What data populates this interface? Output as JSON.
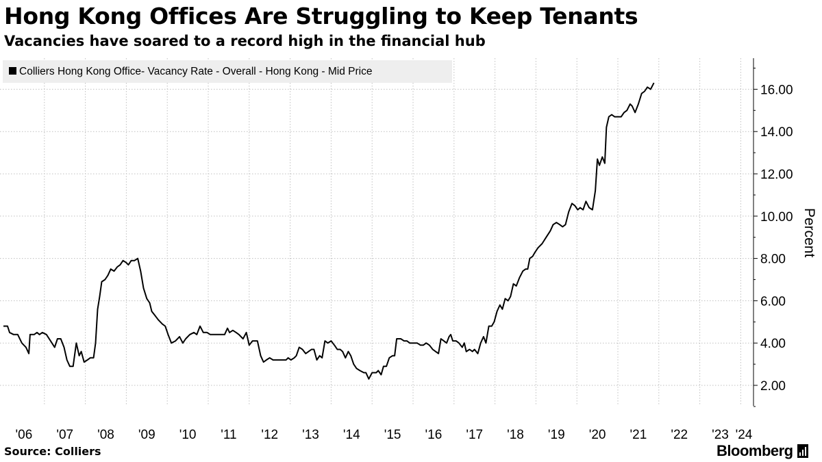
{
  "title": "Hong Kong Offices Are Struggling to Keep Tenants",
  "subtitle": "Vacancies have soared to a record high in the financial hub",
  "source": "Source: Colliers",
  "brand": "Bloomberg",
  "colors": {
    "line": "#000000",
    "grid": "#bfbfbf",
    "legend_bg": "#eeeeee",
    "axis": "#000000"
  },
  "chart_data": {
    "type": "line",
    "title": "Hong Kong Offices Are Struggling to Keep Tenants",
    "subtitle": "Vacancies have soared to a record high in the financial hub",
    "xlabel": "",
    "ylabel": "Percent",
    "ylim": [
      1.0,
      17.5
    ],
    "xlim": [
      2006.0,
      2024.3
    ],
    "y_ticks": [
      2,
      4,
      6,
      8,
      10,
      12,
      14,
      16
    ],
    "y_tick_labels": [
      "2.00",
      "4.00",
      "6.00",
      "8.00",
      "10.00",
      "12.00",
      "14.00",
      "16.00"
    ],
    "y_axis_side": "right",
    "x_ticks": [
      2006,
      2007,
      2008,
      2009,
      2010,
      2011,
      2012,
      2013,
      2014,
      2015,
      2016,
      2017,
      2018,
      2019,
      2020,
      2021,
      2022,
      2023,
      2024
    ],
    "x_tick_labels": [
      "'06",
      "'07",
      "'08",
      "'09",
      "'10",
      "'11",
      "'12",
      "'13",
      "'14",
      "'15",
      "'16",
      "'17",
      "'18",
      "'19",
      "'20",
      "'21",
      "'22",
      "'23",
      "'24"
    ],
    "grid": true,
    "legend_position": "top-left",
    "series": [
      {
        "name": "Colliers Hong Kong Office- Vacancy Rate - Overall - Hong Kong - Mid Price",
        "points": [
          [
            2006.0,
            4.8
          ],
          [
            2006.1,
            4.8
          ],
          [
            2006.15,
            4.5
          ],
          [
            2006.25,
            4.4
          ],
          [
            2006.35,
            4.4
          ],
          [
            2006.45,
            4.0
          ],
          [
            2006.55,
            3.8
          ],
          [
            2006.62,
            3.5
          ],
          [
            2006.65,
            4.4
          ],
          [
            2006.75,
            4.4
          ],
          [
            2006.82,
            4.5
          ],
          [
            2006.88,
            4.4
          ],
          [
            2006.95,
            4.5
          ],
          [
            2007.05,
            4.4
          ],
          [
            2007.15,
            4.1
          ],
          [
            2007.25,
            3.8
          ],
          [
            2007.32,
            4.2
          ],
          [
            2007.4,
            4.2
          ],
          [
            2007.48,
            3.8
          ],
          [
            2007.55,
            3.2
          ],
          [
            2007.62,
            2.9
          ],
          [
            2007.7,
            2.9
          ],
          [
            2007.78,
            4.0
          ],
          [
            2007.85,
            3.4
          ],
          [
            2007.9,
            3.6
          ],
          [
            2007.97,
            3.1
          ],
          [
            2008.05,
            3.2
          ],
          [
            2008.12,
            3.3
          ],
          [
            2008.2,
            3.3
          ],
          [
            2008.25,
            4.0
          ],
          [
            2008.3,
            5.6
          ],
          [
            2008.35,
            6.2
          ],
          [
            2008.4,
            6.9
          ],
          [
            2008.48,
            7.0
          ],
          [
            2008.55,
            7.2
          ],
          [
            2008.62,
            7.5
          ],
          [
            2008.7,
            7.4
          ],
          [
            2008.78,
            7.6
          ],
          [
            2008.85,
            7.7
          ],
          [
            2008.92,
            7.9
          ],
          [
            2009.0,
            7.8
          ],
          [
            2009.05,
            7.7
          ],
          [
            2009.12,
            7.9
          ],
          [
            2009.2,
            7.9
          ],
          [
            2009.28,
            8.0
          ],
          [
            2009.35,
            7.4
          ],
          [
            2009.42,
            6.6
          ],
          [
            2009.5,
            6.1
          ],
          [
            2009.57,
            5.9
          ],
          [
            2009.62,
            5.5
          ],
          [
            2009.7,
            5.3
          ],
          [
            2009.78,
            5.1
          ],
          [
            2009.88,
            4.9
          ],
          [
            2009.95,
            4.8
          ],
          [
            2010.02,
            4.4
          ],
          [
            2010.1,
            4.0
          ],
          [
            2010.2,
            4.1
          ],
          [
            2010.3,
            4.3
          ],
          [
            2010.38,
            4.0
          ],
          [
            2010.45,
            4.2
          ],
          [
            2010.55,
            4.4
          ],
          [
            2010.65,
            4.5
          ],
          [
            2010.72,
            4.4
          ],
          [
            2010.8,
            4.8
          ],
          [
            2010.88,
            4.5
          ],
          [
            2010.97,
            4.5
          ],
          [
            2011.05,
            4.4
          ],
          [
            2011.2,
            4.4
          ],
          [
            2011.4,
            4.4
          ],
          [
            2011.47,
            4.7
          ],
          [
            2011.52,
            4.5
          ],
          [
            2011.6,
            4.6
          ],
          [
            2011.68,
            4.5
          ],
          [
            2011.75,
            4.4
          ],
          [
            2011.85,
            4.2
          ],
          [
            2011.93,
            4.5
          ],
          [
            2012.0,
            3.9
          ],
          [
            2012.08,
            4.1
          ],
          [
            2012.2,
            4.1
          ],
          [
            2012.28,
            3.4
          ],
          [
            2012.35,
            3.1
          ],
          [
            2012.42,
            3.2
          ],
          [
            2012.5,
            3.3
          ],
          [
            2012.58,
            3.2
          ],
          [
            2012.7,
            3.2
          ],
          [
            2012.8,
            3.2
          ],
          [
            2012.9,
            3.2
          ],
          [
            2012.95,
            3.3
          ],
          [
            2013.02,
            3.2
          ],
          [
            2013.1,
            3.3
          ],
          [
            2013.15,
            3.4
          ],
          [
            2013.22,
            3.8
          ],
          [
            2013.3,
            3.7
          ],
          [
            2013.38,
            3.5
          ],
          [
            2013.45,
            3.6
          ],
          [
            2013.52,
            3.7
          ],
          [
            2013.58,
            3.7
          ],
          [
            2013.65,
            3.2
          ],
          [
            2013.72,
            3.4
          ],
          [
            2013.78,
            3.3
          ],
          [
            2013.85,
            4.1
          ],
          [
            2013.92,
            4.0
          ],
          [
            2014.0,
            4.1
          ],
          [
            2014.08,
            3.9
          ],
          [
            2014.15,
            3.7
          ],
          [
            2014.22,
            3.7
          ],
          [
            2014.28,
            3.6
          ],
          [
            2014.35,
            3.3
          ],
          [
            2014.42,
            3.6
          ],
          [
            2014.48,
            3.4
          ],
          [
            2014.55,
            3.0
          ],
          [
            2014.62,
            2.8
          ],
          [
            2014.7,
            2.7
          ],
          [
            2014.8,
            2.6
          ],
          [
            2014.85,
            2.6
          ],
          [
            2014.92,
            2.3
          ],
          [
            2015.0,
            2.6
          ],
          [
            2015.1,
            2.6
          ],
          [
            2015.15,
            2.7
          ],
          [
            2015.22,
            2.5
          ],
          [
            2015.28,
            2.9
          ],
          [
            2015.35,
            2.9
          ],
          [
            2015.42,
            3.3
          ],
          [
            2015.5,
            3.4
          ],
          [
            2015.55,
            3.4
          ],
          [
            2015.6,
            4.2
          ],
          [
            2015.7,
            4.2
          ],
          [
            2015.78,
            4.1
          ],
          [
            2015.85,
            4.1
          ],
          [
            2015.92,
            4.0
          ],
          [
            2016.0,
            4.0
          ],
          [
            2016.1,
            4.0
          ],
          [
            2016.18,
            3.9
          ],
          [
            2016.25,
            3.9
          ],
          [
            2016.32,
            4.0
          ],
          [
            2016.4,
            3.9
          ],
          [
            2016.48,
            3.7
          ],
          [
            2016.55,
            3.6
          ],
          [
            2016.62,
            3.5
          ],
          [
            2016.68,
            4.2
          ],
          [
            2016.75,
            4.1
          ],
          [
            2016.82,
            4.0
          ],
          [
            2016.88,
            4.3
          ],
          [
            2016.92,
            4.4
          ],
          [
            2016.97,
            4.1
          ],
          [
            2017.05,
            4.1
          ],
          [
            2017.12,
            4.0
          ],
          [
            2017.2,
            3.8
          ],
          [
            2017.25,
            4.0
          ],
          [
            2017.3,
            3.6
          ],
          [
            2017.38,
            3.7
          ],
          [
            2017.45,
            3.6
          ],
          [
            2017.5,
            3.7
          ],
          [
            2017.58,
            3.5
          ],
          [
            2017.65,
            4.0
          ],
          [
            2017.72,
            4.3
          ],
          [
            2017.78,
            4.0
          ],
          [
            2017.85,
            4.8
          ],
          [
            2017.92,
            4.8
          ],
          [
            2017.98,
            5.0
          ],
          [
            2018.05,
            5.5
          ],
          [
            2018.12,
            5.8
          ],
          [
            2018.18,
            5.6
          ],
          [
            2018.25,
            6.1
          ],
          [
            2018.32,
            6.0
          ],
          [
            2018.38,
            6.2
          ],
          [
            2018.45,
            6.8
          ],
          [
            2018.52,
            6.7
          ],
          [
            2018.6,
            7.1
          ],
          [
            2018.68,
            7.4
          ],
          [
            2018.75,
            7.5
          ],
          [
            2018.8,
            7.5
          ],
          [
            2018.85,
            8.0
          ],
          [
            2018.92,
            8.1
          ],
          [
            2018.98,
            8.3
          ],
          [
            2019.05,
            8.5
          ],
          [
            2019.15,
            8.7
          ],
          [
            2019.25,
            9.0
          ],
          [
            2019.35,
            9.3
          ],
          [
            2019.42,
            9.6
          ],
          [
            2019.5,
            9.7
          ],
          [
            2019.58,
            9.6
          ],
          [
            2019.65,
            9.5
          ],
          [
            2019.72,
            9.6
          ],
          [
            2019.8,
            10.2
          ],
          [
            2019.88,
            10.6
          ],
          [
            2019.95,
            10.5
          ],
          [
            2020.02,
            10.3
          ],
          [
            2020.08,
            10.4
          ],
          [
            2020.15,
            10.3
          ],
          [
            2020.22,
            10.7
          ],
          [
            2020.3,
            10.4
          ],
          [
            2020.38,
            10.3
          ],
          [
            2020.45,
            11.2
          ],
          [
            2020.5,
            12.7
          ],
          [
            2020.55,
            12.4
          ],
          [
            2020.62,
            12.8
          ],
          [
            2020.68,
            12.5
          ],
          [
            2020.72,
            14.2
          ],
          [
            2020.78,
            14.7
          ],
          [
            2020.85,
            14.8
          ],
          [
            2020.92,
            14.7
          ],
          [
            2021.0,
            14.7
          ],
          [
            2021.08,
            14.7
          ],
          [
            2021.15,
            14.9
          ],
          [
            2021.22,
            15.0
          ],
          [
            2021.3,
            15.3
          ],
          [
            2021.35,
            15.2
          ],
          [
            2021.42,
            14.9
          ],
          [
            2021.5,
            15.3
          ],
          [
            2021.58,
            15.8
          ],
          [
            2021.65,
            15.9
          ],
          [
            2021.72,
            16.1
          ],
          [
            2021.8,
            16.0
          ],
          [
            2021.88,
            16.3
          ]
        ]
      }
    ]
  }
}
